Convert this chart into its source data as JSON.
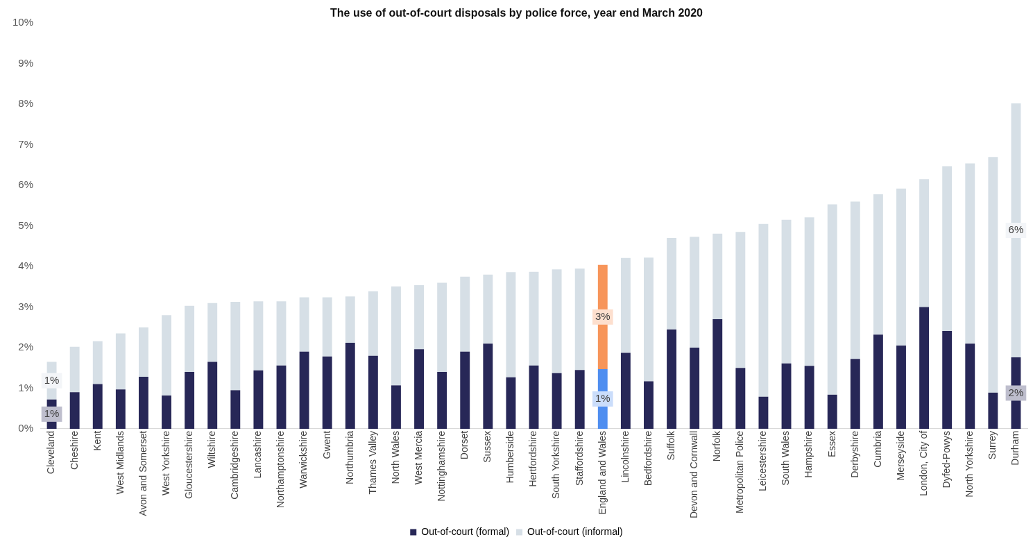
{
  "chart_data": {
    "type": "bar",
    "title": "The use of out-of-court disposals by police force, year end March 2020",
    "stacked": true,
    "legend": "bottom",
    "grid": false,
    "categories": [
      "Cleveland",
      "Cheshire",
      "Kent",
      "West Midlands",
      "Avon and Somerset",
      "West Yorkshire",
      "Gloucestershire",
      "Wiltshire",
      "Cambridgeshire",
      "Lancashire",
      "Northamptonshire",
      "Warwickshire",
      "Gwent",
      "Northumbria",
      "Thames Valley",
      "North Wales",
      "West Mercia",
      "Nottinghamshire",
      "Dorset",
      "Sussex",
      "Humberside",
      "Hertfordshire",
      "South Yorkshire",
      "Staffordshire",
      "England and Wales",
      "Lincolnshire",
      "Bedfordshire",
      "Suffolk",
      "Devon and Cornwall",
      "Norfolk",
      "Metropolitan Police",
      "Leicestershire",
      "South Wales",
      "Hampshire",
      "Essex",
      "Derbyshire",
      "Cumbria",
      "Merseyside",
      "London, City of",
      "Dyfed-Powys",
      "North Yorkshire",
      "Surrey",
      "Durham"
    ],
    "ylim": [
      0,
      10
    ],
    "yticks": [
      {
        "value": 0,
        "label": "0%"
      },
      {
        "value": 1,
        "label": "1%"
      },
      {
        "value": 2,
        "label": "2%"
      },
      {
        "value": 3,
        "label": "3%"
      },
      {
        "value": 4,
        "label": "4%"
      },
      {
        "value": 5,
        "label": "5%"
      },
      {
        "value": 6,
        "label": "6%"
      },
      {
        "value": 7,
        "label": "7%"
      },
      {
        "value": 8,
        "label": "8%"
      },
      {
        "value": 9,
        "label": "9%"
      },
      {
        "value": 10,
        "label": "10%"
      }
    ],
    "series": [
      {
        "name": "Out-of-court (formal)",
        "color": "#272757",
        "colors": [
          "#272757",
          "#272757",
          "#272757",
          "#272757",
          "#272757",
          "#272757",
          "#272757",
          "#272757",
          "#272757",
          "#272757",
          "#272757",
          "#272757",
          "#272757",
          "#272757",
          "#272757",
          "#272757",
          "#272757",
          "#272757",
          "#272757",
          "#272757",
          "#272757",
          "#272757",
          "#272757",
          "#272757",
          "#4f8ef0",
          "#272757",
          "#272757",
          "#272757",
          "#272757",
          "#272757",
          "#272757",
          "#272757",
          "#272757",
          "#272757",
          "#272757",
          "#272757",
          "#272757",
          "#272757",
          "#272757",
          "#272757",
          "#272757",
          "#272757",
          "#272757"
        ],
        "values": [
          0.72,
          0.9,
          1.1,
          0.97,
          1.28,
          0.82,
          1.4,
          1.65,
          0.95,
          1.44,
          1.56,
          1.9,
          1.78,
          2.12,
          1.8,
          1.07,
          1.96,
          1.4,
          1.9,
          2.1,
          1.27,
          1.56,
          1.37,
          1.45,
          1.47,
          1.87,
          1.17,
          2.45,
          2.0,
          2.7,
          1.5,
          0.79,
          1.61,
          1.55,
          0.84,
          1.72,
          2.32,
          2.05,
          3.0,
          2.41,
          2.1,
          0.89,
          1.76
        ],
        "value_labels": [
          "1%",
          null,
          null,
          null,
          null,
          null,
          null,
          null,
          null,
          null,
          null,
          null,
          null,
          null,
          null,
          null,
          null,
          null,
          null,
          null,
          null,
          null,
          null,
          null,
          "1%",
          null,
          null,
          null,
          null,
          null,
          null,
          null,
          null,
          null,
          null,
          null,
          null,
          null,
          null,
          null,
          null,
          null,
          "2%"
        ]
      },
      {
        "name": "Out-of-court (informal)",
        "color": "#d6dfe6",
        "colors": [
          "#d6dfe6",
          "#d6dfe6",
          "#d6dfe6",
          "#d6dfe6",
          "#d6dfe6",
          "#d6dfe6",
          "#d6dfe6",
          "#d6dfe6",
          "#d6dfe6",
          "#d6dfe6",
          "#d6dfe6",
          "#d6dfe6",
          "#d6dfe6",
          "#d6dfe6",
          "#d6dfe6",
          "#d6dfe6",
          "#d6dfe6",
          "#d6dfe6",
          "#d6dfe6",
          "#d6dfe6",
          "#d6dfe6",
          "#d6dfe6",
          "#d6dfe6",
          "#d6dfe6",
          "#f7955a",
          "#d6dfe6",
          "#d6dfe6",
          "#d6dfe6",
          "#d6dfe6",
          "#d6dfe6",
          "#d6dfe6",
          "#d6dfe6",
          "#d6dfe6",
          "#d6dfe6",
          "#d6dfe6",
          "#d6dfe6",
          "#d6dfe6",
          "#d6dfe6",
          "#d6dfe6",
          "#d6dfe6",
          "#d6dfe6",
          "#d6dfe6",
          "#d6dfe6"
        ],
        "values": [
          0.93,
          1.12,
          1.06,
          1.38,
          1.22,
          1.98,
          1.63,
          1.45,
          2.18,
          1.7,
          1.58,
          1.34,
          1.46,
          1.14,
          1.59,
          2.44,
          1.58,
          2.2,
          1.85,
          1.7,
          2.59,
          2.31,
          2.56,
          2.5,
          2.57,
          2.34,
          3.05,
          2.25,
          2.73,
          2.11,
          3.35,
          4.26,
          3.54,
          3.66,
          4.69,
          3.88,
          3.46,
          3.87,
          3.15,
          4.06,
          4.44,
          5.81,
          6.26
        ],
        "value_labels": [
          "1%",
          null,
          null,
          null,
          null,
          null,
          null,
          null,
          null,
          null,
          null,
          null,
          null,
          null,
          null,
          null,
          null,
          null,
          null,
          null,
          null,
          null,
          null,
          null,
          "3%",
          null,
          null,
          null,
          null,
          null,
          null,
          null,
          null,
          null,
          null,
          null,
          null,
          null,
          null,
          null,
          null,
          null,
          "6%"
        ]
      }
    ]
  }
}
